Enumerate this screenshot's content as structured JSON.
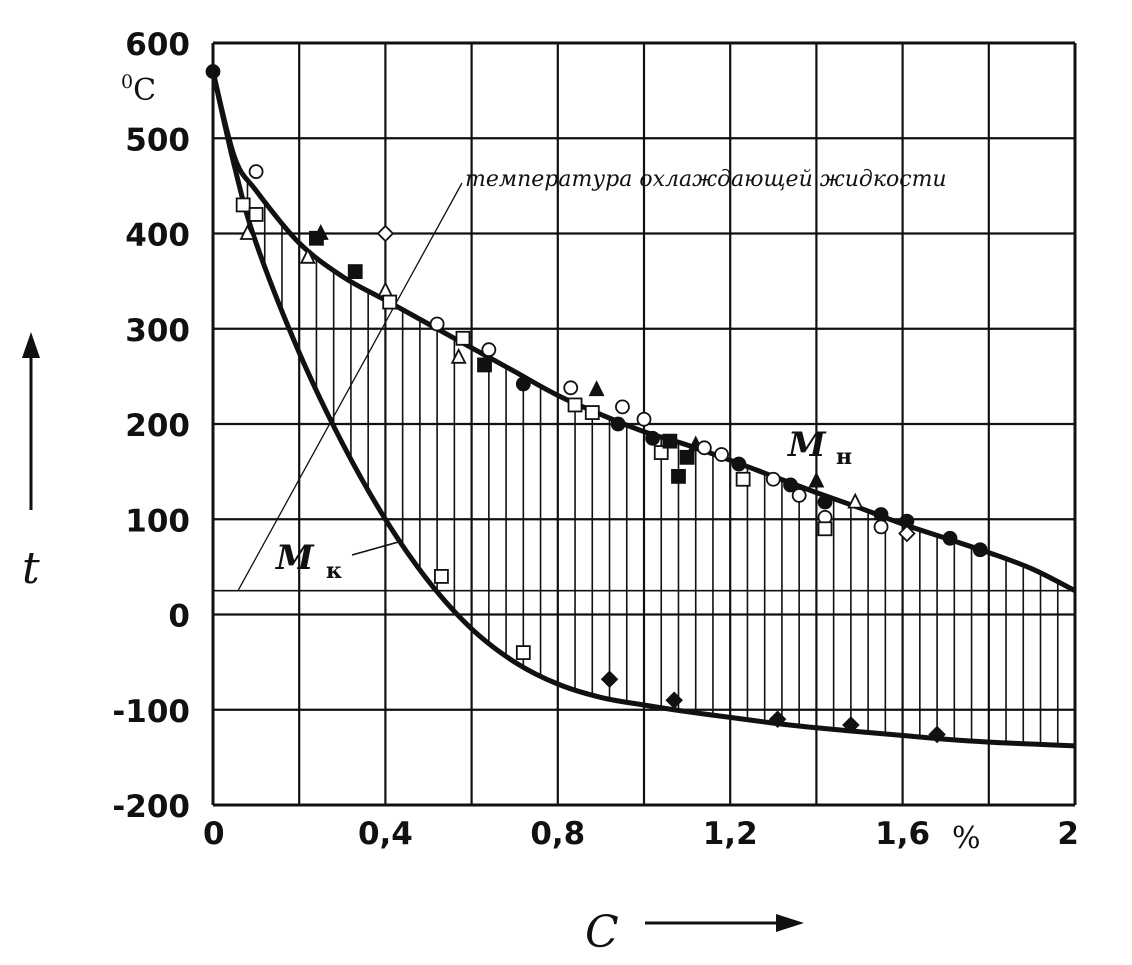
{
  "chart_data": {
    "type": "area",
    "title": "",
    "x_axis": {
      "variable": "C",
      "unit": "%",
      "range": [
        0,
        2.0
      ],
      "tick_values": [
        0,
        0.2,
        0.4,
        0.6,
        0.8,
        1.0,
        1.2,
        1.4,
        1.6,
        1.8,
        2.0
      ],
      "tick_labels": [
        {
          "value": 0,
          "label": "0"
        },
        {
          "value": 0.4,
          "label": "0,4"
        },
        {
          "value": 0.8,
          "label": "0,8"
        },
        {
          "value": 1.2,
          "label": "1,2"
        },
        {
          "value": 1.6,
          "label": "1,6"
        },
        {
          "value": 2.0,
          "label": "2"
        }
      ]
    },
    "y_axis": {
      "variable": "t",
      "unit_superscript": "0",
      "unit": "C",
      "range": [
        -200,
        600
      ],
      "tick_values": [
        -200,
        -100,
        0,
        100,
        200,
        300,
        400,
        500,
        600
      ],
      "tick_labels": [
        "-200",
        "-100",
        "0",
        "100",
        "200",
        "300",
        "400",
        "500",
        "600"
      ]
    },
    "grid": true,
    "coolant_temperature": {
      "label": "температура охлаждающей жидкости",
      "value": 25
    },
    "series": [
      {
        "name": "Mн",
        "label_main": "M",
        "label_sub": "н",
        "x": [
          0,
          0.05,
          0.1,
          0.2,
          0.3,
          0.4,
          0.5,
          0.6,
          0.7,
          0.8,
          0.9,
          1.0,
          1.1,
          1.2,
          1.3,
          1.4,
          1.5,
          1.6,
          1.7,
          1.8,
          1.9,
          2.0
        ],
        "y": [
          570,
          480,
          445,
          390,
          355,
          330,
          305,
          280,
          255,
          230,
          210,
          192,
          178,
          162,
          145,
          128,
          112,
          95,
          80,
          65,
          48,
          25
        ]
      },
      {
        "name": "Mк",
        "label_main": "M",
        "label_sub": "к",
        "x": [
          0,
          0.05,
          0.1,
          0.2,
          0.3,
          0.4,
          0.5,
          0.6,
          0.7,
          0.8,
          0.9,
          1.0,
          1.1,
          1.2,
          1.3,
          1.4,
          1.5,
          1.6,
          1.7,
          1.8,
          1.9,
          2.0
        ],
        "y": [
          570,
          470,
          390,
          275,
          180,
          100,
          35,
          -15,
          -50,
          -73,
          -87,
          -95,
          -102,
          -108,
          -114,
          -119,
          -123,
          -127,
          -131,
          -134,
          -136,
          -138
        ]
      }
    ],
    "points": [
      {
        "x": 0,
        "y": 570,
        "marker": "filled-circle"
      },
      {
        "x": 0.07,
        "y": 430,
        "marker": "open-square"
      },
      {
        "x": 0.08,
        "y": 400,
        "marker": "open-triangle"
      },
      {
        "x": 0.1,
        "y": 465,
        "marker": "open-circle"
      },
      {
        "x": 0.1,
        "y": 420,
        "marker": "open-square"
      },
      {
        "x": 0.22,
        "y": 375,
        "marker": "open-triangle"
      },
      {
        "x": 0.24,
        "y": 395,
        "marker": "filled-square"
      },
      {
        "x": 0.25,
        "y": 400,
        "marker": "filled-triangle"
      },
      {
        "x": 0.33,
        "y": 360,
        "marker": "filled-square"
      },
      {
        "x": 0.4,
        "y": 400,
        "marker": "open-diamond"
      },
      {
        "x": 0.4,
        "y": 340,
        "marker": "open-triangle"
      },
      {
        "x": 0.41,
        "y": 328,
        "marker": "open-square"
      },
      {
        "x": 0.52,
        "y": 305,
        "marker": "open-circle"
      },
      {
        "x": 0.57,
        "y": 270,
        "marker": "open-triangle"
      },
      {
        "x": 0.58,
        "y": 290,
        "marker": "open-square"
      },
      {
        "x": 0.63,
        "y": 262,
        "marker": "filled-square"
      },
      {
        "x": 0.64,
        "y": 278,
        "marker": "open-circle"
      },
      {
        "x": 0.72,
        "y": 242,
        "marker": "filled-circle"
      },
      {
        "x": 0.83,
        "y": 238,
        "marker": "open-circle"
      },
      {
        "x": 0.84,
        "y": 220,
        "marker": "open-square"
      },
      {
        "x": 0.88,
        "y": 212,
        "marker": "open-square"
      },
      {
        "x": 0.89,
        "y": 236,
        "marker": "filled-triangle"
      },
      {
        "x": 0.94,
        "y": 200,
        "marker": "filled-circle"
      },
      {
        "x": 0.95,
        "y": 218,
        "marker": "open-circle"
      },
      {
        "x": 1.0,
        "y": 205,
        "marker": "open-circle"
      },
      {
        "x": 1.02,
        "y": 185,
        "marker": "filled-circle"
      },
      {
        "x": 1.04,
        "y": 170,
        "marker": "open-square"
      },
      {
        "x": 1.06,
        "y": 182,
        "marker": "filled-square"
      },
      {
        "x": 1.08,
        "y": 145,
        "marker": "filled-square"
      },
      {
        "x": 1.1,
        "y": 165,
        "marker": "filled-square"
      },
      {
        "x": 1.12,
        "y": 178,
        "marker": "filled-triangle"
      },
      {
        "x": 1.14,
        "y": 175,
        "marker": "open-circle"
      },
      {
        "x": 1.18,
        "y": 168,
        "marker": "open-circle"
      },
      {
        "x": 1.22,
        "y": 158,
        "marker": "filled-circle"
      },
      {
        "x": 1.23,
        "y": 142,
        "marker": "open-square"
      },
      {
        "x": 1.3,
        "y": 142,
        "marker": "open-circle"
      },
      {
        "x": 1.34,
        "y": 136,
        "marker": "filled-circle"
      },
      {
        "x": 1.36,
        "y": 125,
        "marker": "open-circle"
      },
      {
        "x": 1.4,
        "y": 140,
        "marker": "filled-triangle"
      },
      {
        "x": 1.42,
        "y": 118,
        "marker": "filled-circle"
      },
      {
        "x": 1.42,
        "y": 102,
        "marker": "open-circle"
      },
      {
        "x": 1.42,
        "y": 90,
        "marker": "open-square"
      },
      {
        "x": 1.49,
        "y": 118,
        "marker": "open-triangle"
      },
      {
        "x": 1.55,
        "y": 105,
        "marker": "filled-circle"
      },
      {
        "x": 1.55,
        "y": 92,
        "marker": "open-circle"
      },
      {
        "x": 1.61,
        "y": 98,
        "marker": "filled-circle"
      },
      {
        "x": 1.61,
        "y": 85,
        "marker": "open-diamond"
      },
      {
        "x": 1.71,
        "y": 80,
        "marker": "filled-circle"
      },
      {
        "x": 1.78,
        "y": 68,
        "marker": "filled-circle"
      },
      {
        "x": 0.53,
        "y": 40,
        "marker": "open-square"
      },
      {
        "x": 0.72,
        "y": -40,
        "marker": "open-square"
      },
      {
        "x": 0.92,
        "y": -68,
        "marker": "filled-diamond"
      },
      {
        "x": 1.07,
        "y": -90,
        "marker": "filled-diamond"
      },
      {
        "x": 1.31,
        "y": -110,
        "marker": "filled-diamond"
      },
      {
        "x": 1.48,
        "y": -116,
        "marker": "filled-diamond"
      },
      {
        "x": 1.68,
        "y": -126,
        "marker": "filled-diamond"
      }
    ]
  }
}
